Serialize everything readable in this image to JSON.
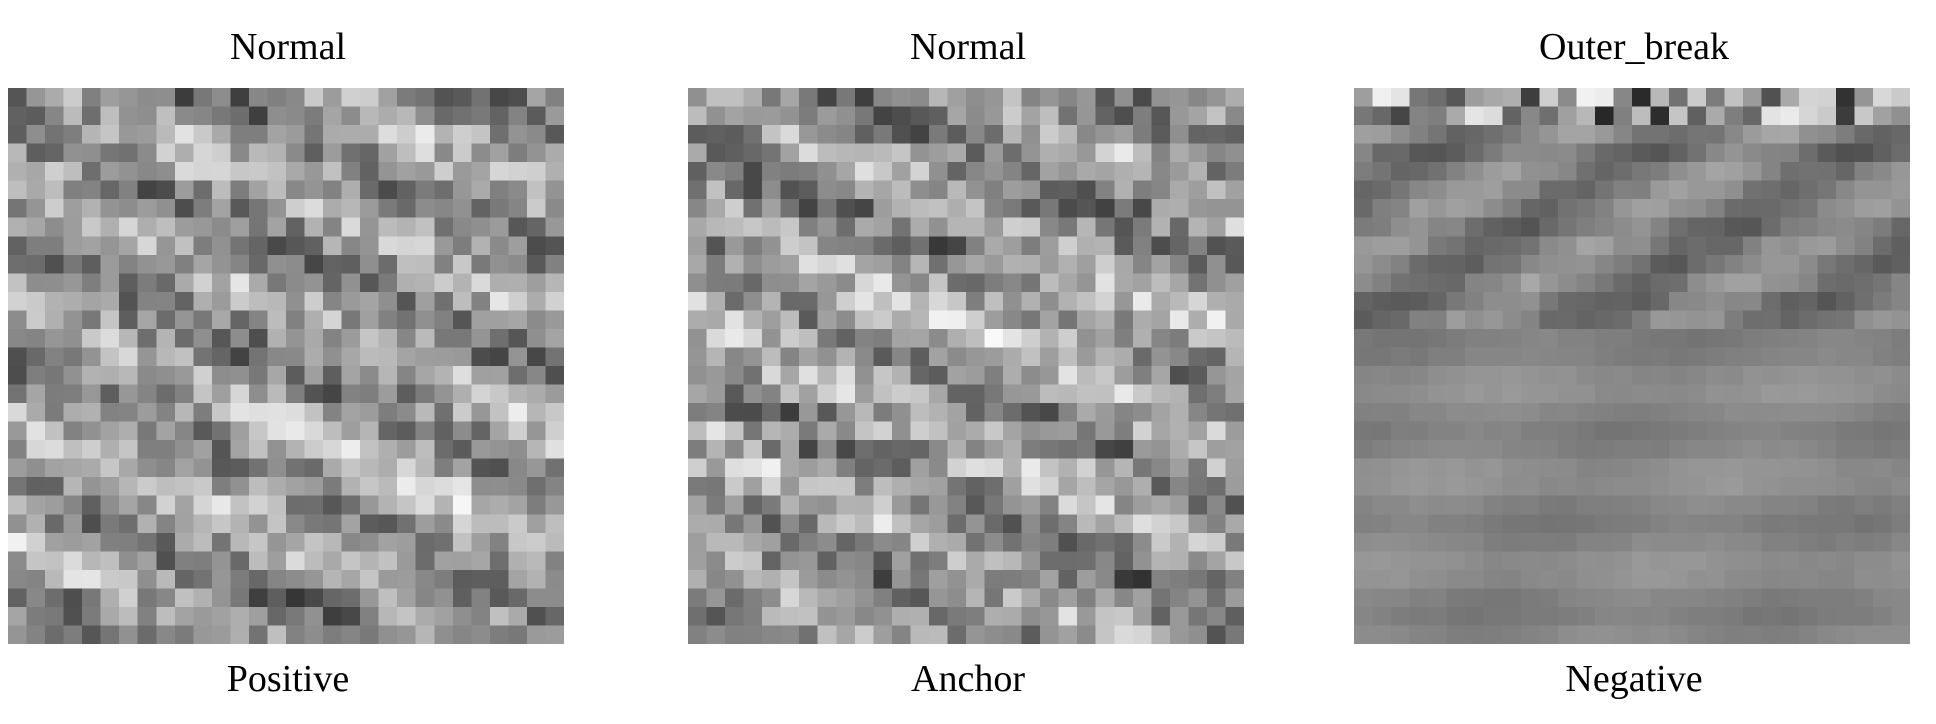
{
  "panels": [
    {
      "id": "positive",
      "title": "Normal",
      "caption": "Positive",
      "pattern": "normal"
    },
    {
      "id": "anchor",
      "title": "Normal",
      "caption": "Anchor",
      "pattern": "normal"
    },
    {
      "id": "negative",
      "title": "Outer_break",
      "caption": "Negative",
      "pattern": "outer_break"
    }
  ],
  "grid": {
    "rows": 30,
    "cols": 30
  },
  "colors": {
    "background": "#ffffff",
    "text": "#000000"
  }
}
